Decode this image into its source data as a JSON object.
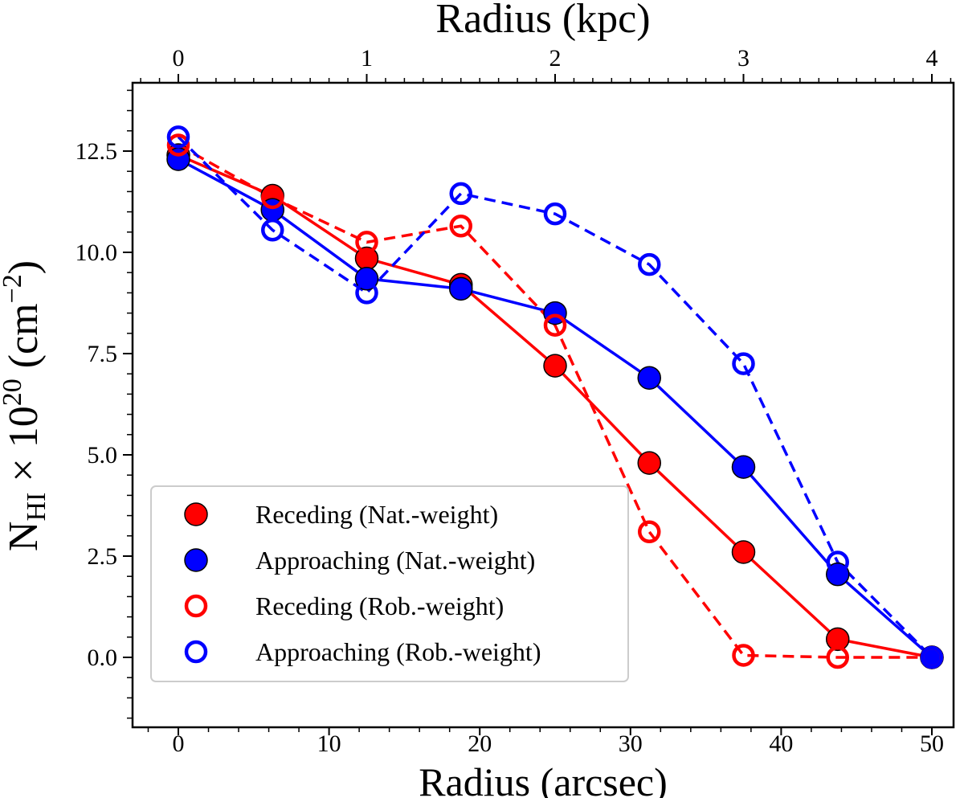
{
  "chart_data": {
    "type": "line",
    "xlabel": "Radius (arcsec)",
    "top_xlabel": "Radius (kpc)",
    "ylabel_main": "N",
    "ylabel_sub": "HI",
    "ylabel_rest": " × 10",
    "ylabel_exp": "20",
    "ylabel_unit": " (cm",
    "ylabel_unit_exp": "−2",
    "ylabel_close": ")",
    "xlim": [
      -3,
      51.5
    ],
    "ylim": [
      -1.7,
      14.2
    ],
    "xticks": [
      0,
      10,
      20,
      30,
      40,
      50
    ],
    "yticks": [
      "0.0",
      "2.5",
      "5.0",
      "7.5",
      "10.0",
      "12.5"
    ],
    "top_xticks": [
      "0",
      "1",
      "2",
      "3",
      "4"
    ],
    "top_axis_scale_arcsec_per_kpc": 12.5,
    "grid": false,
    "legend_position": "bottom-left",
    "x": [
      0,
      6.25,
      12.5,
      18.75,
      25,
      31.25,
      37.5,
      43.75,
      50
    ],
    "series": [
      {
        "name": "Receding (Nat.-weight)",
        "color": "#ff0000",
        "marker": "filled",
        "line": "solid",
        "values": [
          12.4,
          11.4,
          9.85,
          9.2,
          7.2,
          4.8,
          2.6,
          0.45,
          0
        ]
      },
      {
        "name": "Approaching (Nat.-weight)",
        "color": "#0000ff",
        "marker": "filled",
        "line": "solid",
        "values": [
          12.3,
          11.05,
          9.35,
          9.1,
          8.5,
          6.9,
          4.7,
          2.05,
          0
        ]
      },
      {
        "name": "Receding (Rob.-weight)",
        "color": "#ff0000",
        "marker": "open",
        "line": "dashed",
        "values": [
          12.65,
          11.35,
          10.25,
          10.65,
          8.2,
          3.1,
          0.05,
          0.0,
          0
        ]
      },
      {
        "name": "Approaching (Rob.-weight)",
        "color": "#0000ff",
        "marker": "open",
        "line": "dashed",
        "values": [
          12.85,
          10.55,
          9.0,
          11.45,
          10.95,
          9.7,
          7.25,
          2.35,
          0
        ]
      }
    ]
  }
}
